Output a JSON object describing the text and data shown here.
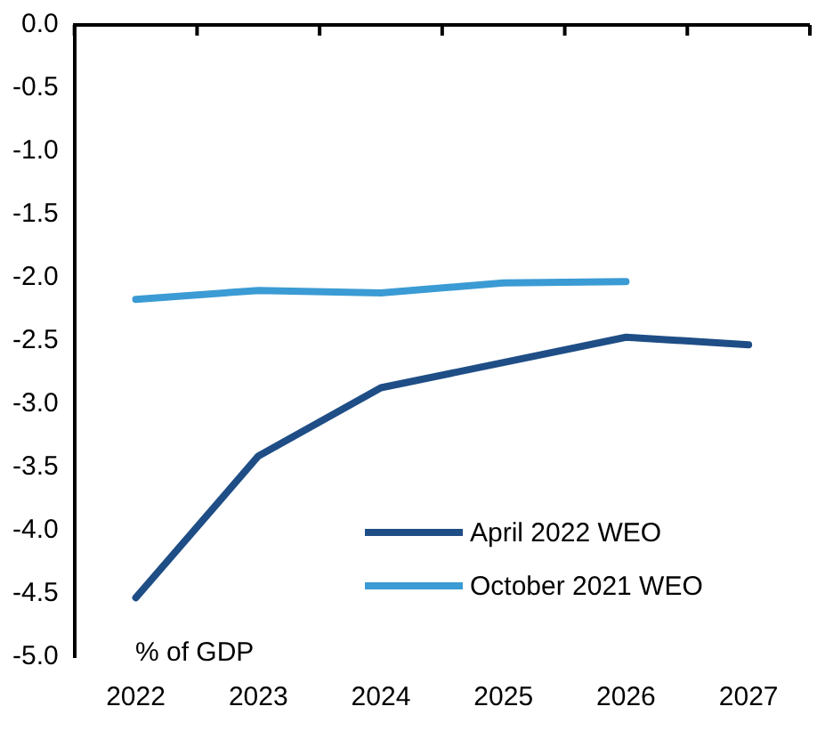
{
  "chart_data": {
    "type": "line",
    "categories": [
      "2022",
      "2023",
      "2024",
      "2025",
      "2026",
      "2027"
    ],
    "series": [
      {
        "name": "April 2022 WEO",
        "color": "#1f4e86",
        "values": [
          -4.53,
          -3.41,
          -2.87,
          -2.67,
          -2.47,
          -2.53
        ]
      },
      {
        "name": "October 2021 WEO",
        "color": "#3b9bd4",
        "values": [
          -2.17,
          -2.1,
          -2.12,
          -2.04,
          -2.03,
          null
        ]
      }
    ],
    "ylim": [
      -5,
      0
    ],
    "yticks": [
      {
        "value": 0,
        "label": "0.0"
      },
      {
        "value": -0.5,
        "label": "-0.5"
      },
      {
        "value": -1,
        "label": "-1.0"
      },
      {
        "value": -1.5,
        "label": "-1.5"
      },
      {
        "value": -2,
        "label": "-2.0"
      },
      {
        "value": -2.5,
        "label": "-2.5"
      },
      {
        "value": -3,
        "label": "-3.0"
      },
      {
        "value": -3.5,
        "label": "-3.5"
      },
      {
        "value": -4,
        "label": "-4.0"
      },
      {
        "value": -4.5,
        "label": "-4.5"
      },
      {
        "value": -5,
        "label": "-5.0"
      }
    ],
    "annotations": [
      "% of GDP"
    ],
    "grid": false,
    "legend": "bottom right",
    "marker": "none",
    "line_style": "solid"
  }
}
